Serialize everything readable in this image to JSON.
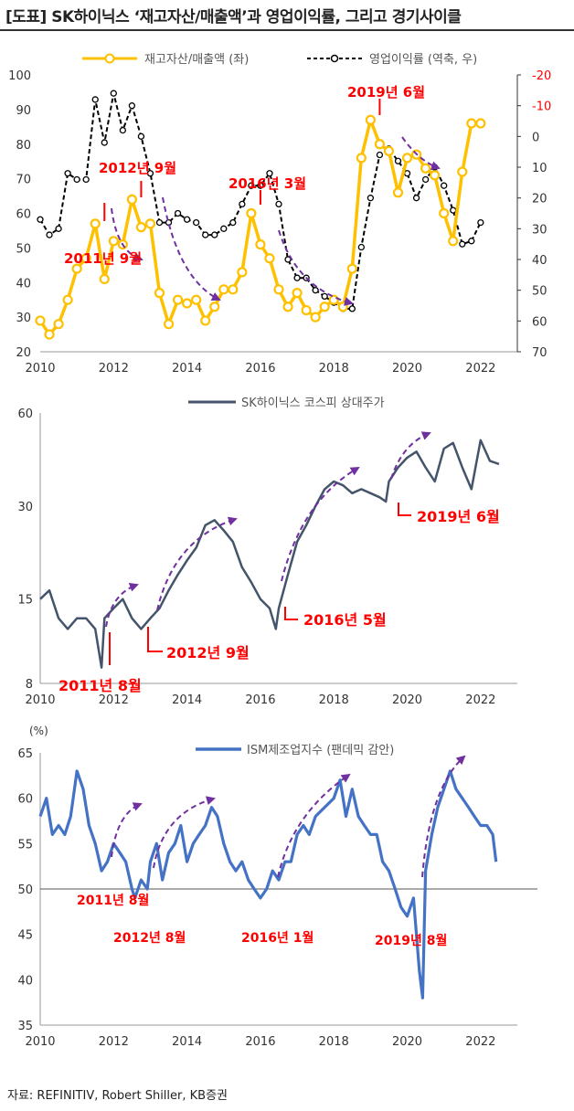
{
  "page": {
    "title": "[도표] SK하이닉스 ‘재고자산/매출액’과 영업이익률, 그리고 경기사이클",
    "source": "자료: REFINITIV, Robert Shiller,  KB증권"
  },
  "colors": {
    "inventory": "#FFC000",
    "margin": "#000000",
    "price": "#44546A",
    "ism": "#4472C4",
    "annot": "#FF0000",
    "arrow": "#7030A0"
  },
  "chart_data": [
    {
      "id": "inventory_margin",
      "type": "line",
      "title": "",
      "xlim": [
        2010,
        2023
      ],
      "x_ticks": [
        2010,
        2012,
        2014,
        2016,
        2018,
        2020,
        2022
      ],
      "ylim_left": [
        20,
        100
      ],
      "y_ticks_left": [
        20,
        30,
        40,
        50,
        60,
        70,
        80,
        90,
        100
      ],
      "ylim_right": [
        70,
        -20
      ],
      "y_ticks_right": [
        -20,
        -10,
        0,
        10,
        20,
        30,
        40,
        50,
        60,
        70
      ],
      "right_axis_inverted": true,
      "grid": false,
      "legend": "top",
      "series": [
        {
          "name": "재고자산/매출액 (좌)",
          "axis": "left",
          "style": "solid-marker",
          "x": [
            2010.0,
            2010.25,
            2010.5,
            2010.75,
            2011.0,
            2011.25,
            2011.5,
            2011.75,
            2012.0,
            2012.25,
            2012.5,
            2012.75,
            2013.0,
            2013.25,
            2013.5,
            2013.75,
            2014.0,
            2014.25,
            2014.5,
            2014.75,
            2015.0,
            2015.25,
            2015.5,
            2015.75,
            2016.0,
            2016.25,
            2016.5,
            2016.75,
            2017.0,
            2017.25,
            2017.5,
            2017.75,
            2018.0,
            2018.25,
            2018.5,
            2018.75,
            2019.0,
            2019.25,
            2019.5,
            2019.75,
            2020.0,
            2020.25,
            2020.5,
            2020.75,
            2021.0,
            2021.25,
            2021.5,
            2021.75,
            2022.0
          ],
          "y": [
            29,
            25,
            28,
            35,
            44,
            47,
            57,
            41,
            52,
            51,
            64,
            56,
            57,
            37,
            28,
            35,
            34,
            35,
            29,
            33,
            38,
            38,
            43,
            60,
            51,
            47,
            38,
            33,
            37,
            32,
            30,
            33,
            35,
            33,
            44,
            76,
            87,
            80,
            78,
            66,
            76,
            77,
            73,
            71,
            60,
            52,
            72,
            86,
            86
          ]
        },
        {
          "name": "영업이익률 (역축, 우)",
          "axis": "right",
          "style": "dashed-marker",
          "x": [
            2010.0,
            2010.25,
            2010.5,
            2010.75,
            2011.0,
            2011.25,
            2011.5,
            2011.75,
            2012.0,
            2012.25,
            2012.5,
            2012.75,
            2013.0,
            2013.25,
            2013.5,
            2013.75,
            2014.0,
            2014.25,
            2014.5,
            2014.75,
            2015.0,
            2015.25,
            2015.5,
            2015.75,
            2016.0,
            2016.25,
            2016.5,
            2016.75,
            2017.0,
            2017.25,
            2017.5,
            2017.75,
            2018.0,
            2018.25,
            2018.5,
            2018.75,
            2019.0,
            2019.25,
            2019.5,
            2019.75,
            2020.0,
            2020.25,
            2020.5,
            2020.75,
            2021.0,
            2021.25,
            2021.5,
            2021.75,
            2022.0
          ],
          "y": [
            27,
            32,
            30,
            12,
            14,
            14,
            -12,
            2,
            -14,
            -2,
            -10,
            0,
            12,
            28,
            28,
            25,
            27,
            28,
            32,
            32,
            30,
            28,
            22,
            16,
            16,
            12,
            22,
            40,
            46,
            46,
            50,
            52,
            54,
            56,
            56,
            36,
            20,
            6,
            4,
            8,
            12,
            20,
            14,
            10,
            16,
            24,
            35,
            34,
            28
          ]
        }
      ],
      "annotations": [
        "2011년 9월",
        "2012년 9월",
        "2016년 3월",
        "2019년 6월"
      ]
    },
    {
      "id": "stock_price",
      "type": "line",
      "title": "",
      "xlim": [
        2010,
        2023
      ],
      "x_ticks": [
        2010,
        2012,
        2014,
        2016,
        2018,
        2020,
        2022
      ],
      "y_scale": "log",
      "ylim": [
        8,
        60
      ],
      "y_ticks": [
        8,
        15,
        30,
        60
      ],
      "grid": false,
      "legend": "top",
      "series": [
        {
          "name": "SK하이닉스 코스피 상대주가",
          "x": [
            2010.0,
            2010.25,
            2010.5,
            2010.75,
            2011.0,
            2011.25,
            2011.5,
            2011.67,
            2011.75,
            2012.0,
            2012.25,
            2012.5,
            2012.75,
            2013.0,
            2013.25,
            2013.5,
            2013.75,
            2014.0,
            2014.25,
            2014.5,
            2014.75,
            2015.0,
            2015.25,
            2015.5,
            2015.75,
            2016.0,
            2016.25,
            2016.42,
            2016.5,
            2016.75,
            2017.0,
            2017.25,
            2017.5,
            2017.75,
            2018.0,
            2018.25,
            2018.5,
            2018.75,
            2019.0,
            2019.25,
            2019.42,
            2019.5,
            2019.75,
            2020.0,
            2020.25,
            2020.5,
            2020.75,
            2021.0,
            2021.25,
            2021.5,
            2021.75,
            2022.0,
            2022.25,
            2022.5
          ],
          "y": [
            15,
            16,
            13,
            12,
            13,
            13,
            12,
            9,
            13,
            14,
            15,
            13,
            12,
            13,
            14,
            16,
            18,
            20,
            22,
            26,
            27,
            25,
            23,
            19,
            17,
            15,
            14,
            12,
            14,
            18,
            23,
            26,
            30,
            34,
            36,
            35,
            33,
            34,
            33,
            32,
            31,
            36,
            40,
            43,
            45,
            40,
            36,
            46,
            48,
            40,
            34,
            49,
            42,
            41
          ]
        }
      ],
      "annotations": [
        "2011년 8월",
        "2012년 9월",
        "2016년 5월",
        "2019년 6월"
      ]
    },
    {
      "id": "ism",
      "type": "line",
      "title": "",
      "ylabel": "(%)",
      "xlim": [
        2010,
        2023
      ],
      "x_ticks": [
        2010,
        2012,
        2014,
        2016,
        2018,
        2020,
        2022
      ],
      "ylim": [
        35,
        65
      ],
      "y_ticks": [
        35,
        40,
        45,
        50,
        55,
        60,
        65
      ],
      "reference_line": 50,
      "grid": false,
      "legend": "top",
      "series": [
        {
          "name": "ISM제조업지수 (팬데믹 감안)",
          "x": [
            2010.0,
            2010.17,
            2010.33,
            2010.5,
            2010.67,
            2010.83,
            2011.0,
            2011.17,
            2011.33,
            2011.5,
            2011.67,
            2011.83,
            2012.0,
            2012.17,
            2012.33,
            2012.5,
            2012.58,
            2012.75,
            2012.92,
            2013.0,
            2013.17,
            2013.33,
            2013.5,
            2013.67,
            2013.83,
            2014.0,
            2014.17,
            2014.33,
            2014.5,
            2014.67,
            2014.83,
            2015.0,
            2015.17,
            2015.33,
            2015.5,
            2015.67,
            2015.83,
            2016.0,
            2016.17,
            2016.33,
            2016.5,
            2016.67,
            2016.83,
            2017.0,
            2017.17,
            2017.33,
            2017.5,
            2017.75,
            2018.0,
            2018.17,
            2018.33,
            2018.5,
            2018.67,
            2018.83,
            2019.0,
            2019.17,
            2019.33,
            2019.5,
            2019.67,
            2019.83,
            2020.0,
            2020.17,
            2020.33,
            2020.42,
            2020.5,
            2020.67,
            2020.83,
            2021.0,
            2021.17,
            2021.33,
            2021.5,
            2021.67,
            2021.83,
            2022.0,
            2022.17,
            2022.33,
            2022.42
          ],
          "y": [
            58,
            60,
            56,
            57,
            56,
            58,
            63,
            61,
            57,
            55,
            52,
            53,
            55,
            54,
            53,
            50,
            49,
            51,
            50,
            53,
            55,
            51,
            54,
            55,
            57,
            53,
            55,
            56,
            57,
            59,
            58,
            55,
            53,
            52,
            53,
            51,
            50,
            49,
            50,
            52,
            51,
            53,
            53,
            56,
            57,
            56,
            58,
            59,
            60,
            62,
            58,
            61,
            58,
            57,
            56,
            56,
            53,
            52,
            50,
            48,
            47,
            49,
            41,
            38,
            52,
            56,
            59,
            61,
            63,
            61,
            60,
            59,
            58,
            57,
            57,
            56,
            53
          ]
        }
      ],
      "annotations": [
        "2011년 8월",
        "2012년 8월",
        "2016년 1월",
        "2019년 8월"
      ]
    }
  ]
}
